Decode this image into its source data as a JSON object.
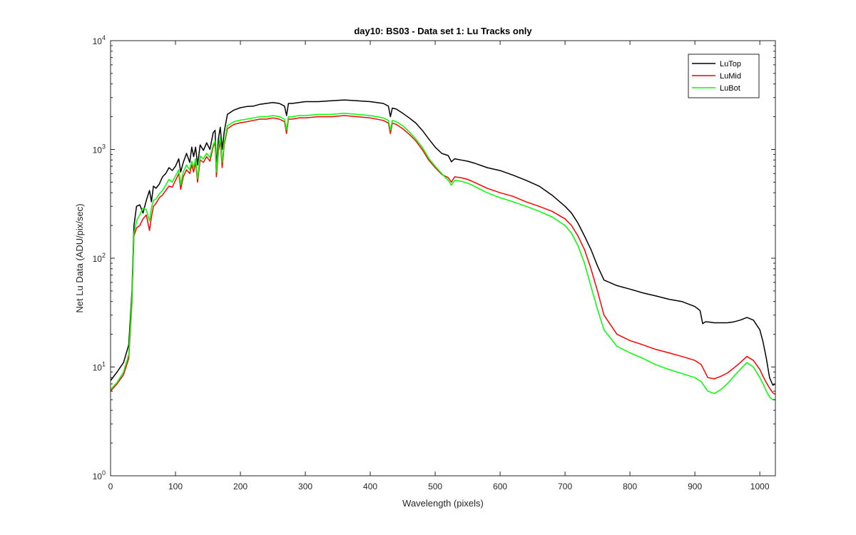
{
  "chart_data": {
    "type": "line",
    "title": "day10: BS03 - Data set 1: Lu Tracks only",
    "xlabel": "Wavelength (pixels)",
    "ylabel": "Net Lu Data (ADU/pix/sec)",
    "xlim": [
      0,
      1024
    ],
    "ylim": [
      1,
      10000
    ],
    "yscale": "log",
    "grid": false,
    "legend_position": "top-right",
    "x_ticks": [
      0,
      100,
      200,
      300,
      400,
      500,
      600,
      700,
      800,
      900,
      1000
    ],
    "x_tick_labels": [
      "0",
      "100",
      "200",
      "300",
      "400",
      "500",
      "600",
      "700",
      "800",
      "900",
      "1000"
    ],
    "y_ticks": [
      1,
      10,
      100,
      1000,
      10000
    ],
    "y_tick_labels": [
      {
        "base": "10",
        "exp": "0"
      },
      {
        "base": "10",
        "exp": "1"
      },
      {
        "base": "10",
        "exp": "2"
      },
      {
        "base": "10",
        "exp": "3"
      },
      {
        "base": "10",
        "exp": "4"
      }
    ],
    "series": [
      {
        "name": "LuTop",
        "color": "#000000",
        "x": [
          0,
          10,
          20,
          28,
          33,
          36,
          40,
          45,
          50,
          55,
          60,
          63,
          66,
          70,
          75,
          80,
          85,
          90,
          95,
          100,
          105,
          108,
          112,
          117,
          122,
          125,
          128,
          131,
          134,
          138,
          143,
          148,
          153,
          158,
          161,
          163,
          166,
          169,
          172,
          175,
          180,
          190,
          200,
          210,
          220,
          230,
          240,
          250,
          260,
          268,
          271,
          274,
          280,
          290,
          300,
          320,
          340,
          360,
          380,
          400,
          420,
          428,
          431,
          434,
          440,
          450,
          460,
          470,
          480,
          490,
          500,
          510,
          520,
          525,
          530,
          540,
          550,
          560,
          580,
          600,
          620,
          640,
          660,
          680,
          700,
          710,
          720,
          730,
          740,
          750,
          760,
          780,
          800,
          820,
          840,
          860,
          880,
          900,
          908,
          912,
          916,
          920,
          930,
          940,
          950,
          960,
          970,
          980,
          990,
          1000,
          1005,
          1010,
          1015,
          1020,
          1024
        ],
        "y": [
          7.5,
          9,
          11,
          16,
          50,
          200,
          300,
          310,
          260,
          340,
          420,
          330,
          460,
          440,
          480,
          560,
          600,
          680,
          640,
          700,
          820,
          620,
          760,
          920,
          760,
          1050,
          860,
          1050,
          720,
          1100,
          980,
          1150,
          1000,
          1420,
          1500,
          690,
          1250,
          1600,
          1000,
          1450,
          2100,
          2300,
          2420,
          2480,
          2500,
          2600,
          2650,
          2700,
          2650,
          2500,
          2050,
          2650,
          2650,
          2700,
          2750,
          2750,
          2800,
          2850,
          2800,
          2750,
          2650,
          2500,
          2000,
          2400,
          2350,
          2150,
          1950,
          1750,
          1500,
          1250,
          1050,
          920,
          880,
          770,
          820,
          800,
          780,
          750,
          680,
          640,
          580,
          520,
          460,
          380,
          300,
          260,
          210,
          160,
          120,
          85,
          63,
          56,
          52,
          48,
          45,
          42,
          40,
          36,
          33,
          25,
          26,
          26,
          25.5,
          25.5,
          25.5,
          26,
          27,
          28.5,
          27,
          22,
          17,
          12,
          8,
          6.8,
          7
        ]
      },
      {
        "name": "LuMid",
        "color": "#ff0000",
        "x": [
          0,
          10,
          20,
          28,
          33,
          36,
          40,
          45,
          50,
          55,
          60,
          63,
          66,
          70,
          75,
          80,
          85,
          90,
          95,
          100,
          105,
          108,
          112,
          117,
          122,
          125,
          128,
          131,
          134,
          138,
          143,
          148,
          153,
          158,
          161,
          163,
          166,
          169,
          172,
          175,
          180,
          190,
          200,
          210,
          220,
          230,
          240,
          250,
          260,
          268,
          271,
          274,
          280,
          290,
          300,
          320,
          340,
          360,
          380,
          400,
          420,
          428,
          431,
          434,
          440,
          450,
          460,
          470,
          480,
          490,
          500,
          510,
          520,
          525,
          530,
          540,
          550,
          560,
          580,
          600,
          620,
          640,
          660,
          680,
          700,
          710,
          720,
          730,
          740,
          750,
          760,
          780,
          800,
          820,
          840,
          860,
          880,
          900,
          910,
          920,
          930,
          940,
          950,
          960,
          970,
          980,
          990,
          1000,
          1005,
          1010,
          1015,
          1020,
          1024
        ],
        "y": [
          6,
          7,
          8.5,
          12,
          40,
          160,
          190,
          200,
          230,
          250,
          180,
          240,
          300,
          320,
          360,
          380,
          420,
          460,
          450,
          520,
          600,
          430,
          560,
          650,
          600,
          720,
          620,
          760,
          500,
          800,
          760,
          860,
          780,
          1050,
          1150,
          560,
          950,
          1200,
          680,
          1100,
          1550,
          1700,
          1760,
          1800,
          1850,
          1900,
          1900,
          1950,
          1900,
          1800,
          1400,
          1900,
          1900,
          1950,
          1950,
          2000,
          2000,
          2050,
          2000,
          1950,
          1850,
          1750,
          1400,
          1750,
          1700,
          1550,
          1380,
          1200,
          1000,
          800,
          680,
          590,
          550,
          500,
          560,
          550,
          530,
          500,
          440,
          400,
          370,
          330,
          300,
          270,
          230,
          200,
          160,
          120,
          80,
          50,
          30,
          20,
          17.5,
          16,
          14.5,
          13.5,
          12.5,
          11.5,
          10.5,
          8,
          7.8,
          8.2,
          8.8,
          9.8,
          11,
          12.5,
          11.5,
          9.5,
          8.2,
          7.2,
          6.4,
          5.8,
          5.6
        ]
      },
      {
        "name": "LuBot",
        "color": "#00ff00",
        "x": [
          0,
          10,
          20,
          28,
          33,
          36,
          40,
          45,
          50,
          55,
          60,
          63,
          66,
          70,
          75,
          80,
          85,
          90,
          95,
          100,
          105,
          108,
          112,
          117,
          122,
          125,
          128,
          131,
          134,
          138,
          143,
          148,
          153,
          158,
          161,
          163,
          166,
          169,
          172,
          175,
          180,
          190,
          200,
          210,
          220,
          230,
          240,
          250,
          260,
          268,
          271,
          274,
          280,
          290,
          300,
          320,
          340,
          360,
          380,
          400,
          420,
          428,
          431,
          434,
          440,
          450,
          460,
          470,
          480,
          490,
          500,
          510,
          520,
          525,
          530,
          540,
          550,
          560,
          580,
          600,
          620,
          640,
          660,
          680,
          700,
          710,
          720,
          730,
          740,
          750,
          760,
          780,
          800,
          820,
          840,
          860,
          880,
          900,
          910,
          920,
          930,
          940,
          950,
          960,
          970,
          980,
          990,
          1000,
          1005,
          1010,
          1015,
          1020,
          1024
        ],
        "y": [
          6.2,
          7.2,
          9,
          13,
          45,
          170,
          220,
          250,
          290,
          280,
          220,
          290,
          340,
          350,
          390,
          420,
          470,
          530,
          500,
          570,
          650,
          470,
          620,
          720,
          650,
          780,
          680,
          820,
          540,
          870,
          820,
          920,
          840,
          1100,
          1200,
          620,
          1050,
          1300,
          760,
          1150,
          1650,
          1800,
          1860,
          1900,
          1950,
          2000,
          2000,
          2050,
          2000,
          1900,
          1500,
          2000,
          2000,
          2050,
          2050,
          2100,
          2100,
          2150,
          2100,
          2050,
          1950,
          1850,
          1500,
          1850,
          1800,
          1650,
          1450,
          1250,
          1050,
          830,
          700,
          600,
          520,
          470,
          520,
          510,
          490,
          460,
          400,
          360,
          330,
          300,
          270,
          240,
          200,
          170,
          130,
          90,
          55,
          34,
          22,
          15.5,
          13.5,
          12,
          10.5,
          9.5,
          8.7,
          8,
          7.3,
          6,
          5.7,
          6.2,
          7,
          8.2,
          9.5,
          11,
          10,
          8,
          7,
          6,
          5.3,
          5,
          5
        ]
      }
    ]
  }
}
